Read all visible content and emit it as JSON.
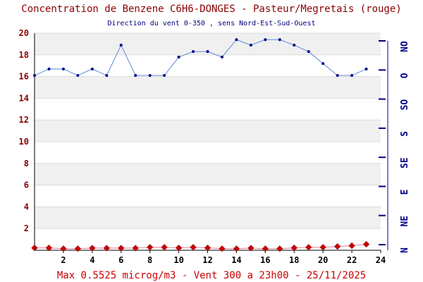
{
  "chart_data": {
    "type": "line",
    "title": "Concentration de Benzene C6H6-DONGES - Pasteur/Megretais (rouge)",
    "subtitle": "Direction du vent 0-350 , sens Nord-Est-Sud-Ouest",
    "footer": "Max 0.5525 microg/m3 - Vent 300  a 23h00 - 25/11/2025",
    "xlim": [
      0,
      24
    ],
    "ylim": [
      0,
      20
    ],
    "x_ticks": [
      "2",
      "4",
      "6",
      "8",
      "10",
      "12",
      "14",
      "16",
      "18",
      "20",
      "22",
      "24"
    ],
    "y_ticks": [
      "2",
      "4",
      "6",
      "8",
      "10",
      "12",
      "14",
      "16",
      "18",
      "20"
    ],
    "direction_ticks": [
      "N",
      "NE",
      "E",
      "SE",
      "S",
      "SO",
      "O",
      "NO"
    ],
    "grid": "horizontal bands",
    "series": [
      {
        "role": "benzene",
        "color": "#cc0000",
        "x": [
          0,
          1,
          2,
          3,
          4,
          5,
          6,
          7,
          8,
          9,
          10,
          11,
          12,
          13,
          14,
          15,
          16,
          17,
          18,
          19,
          20,
          21,
          22,
          23
        ],
        "values": [
          0.22,
          0.22,
          0.15,
          0.15,
          0.2,
          0.2,
          0.2,
          0.2,
          0.28,
          0.28,
          0.22,
          0.28,
          0.22,
          0.15,
          0.15,
          0.2,
          0.15,
          0.15,
          0.22,
          0.28,
          0.28,
          0.35,
          0.42,
          0.5525
        ]
      },
      {
        "role": "wind_direction",
        "color": "#5b8ad8",
        "x": [
          0,
          1,
          2,
          3,
          4,
          5,
          6,
          7,
          8,
          9,
          10,
          11,
          12,
          13,
          14,
          15,
          16,
          17,
          18,
          19,
          20,
          21,
          22,
          23
        ],
        "values": [
          16.1,
          16.7,
          16.7,
          16.1,
          16.7,
          16.1,
          18.9,
          16.1,
          16.1,
          16.1,
          17.8,
          18.3,
          18.3,
          17.8,
          19.4,
          18.9,
          19.4,
          19.4,
          18.9,
          18.3,
          17.2,
          16.1,
          16.1,
          16.7
        ]
      }
    ]
  }
}
